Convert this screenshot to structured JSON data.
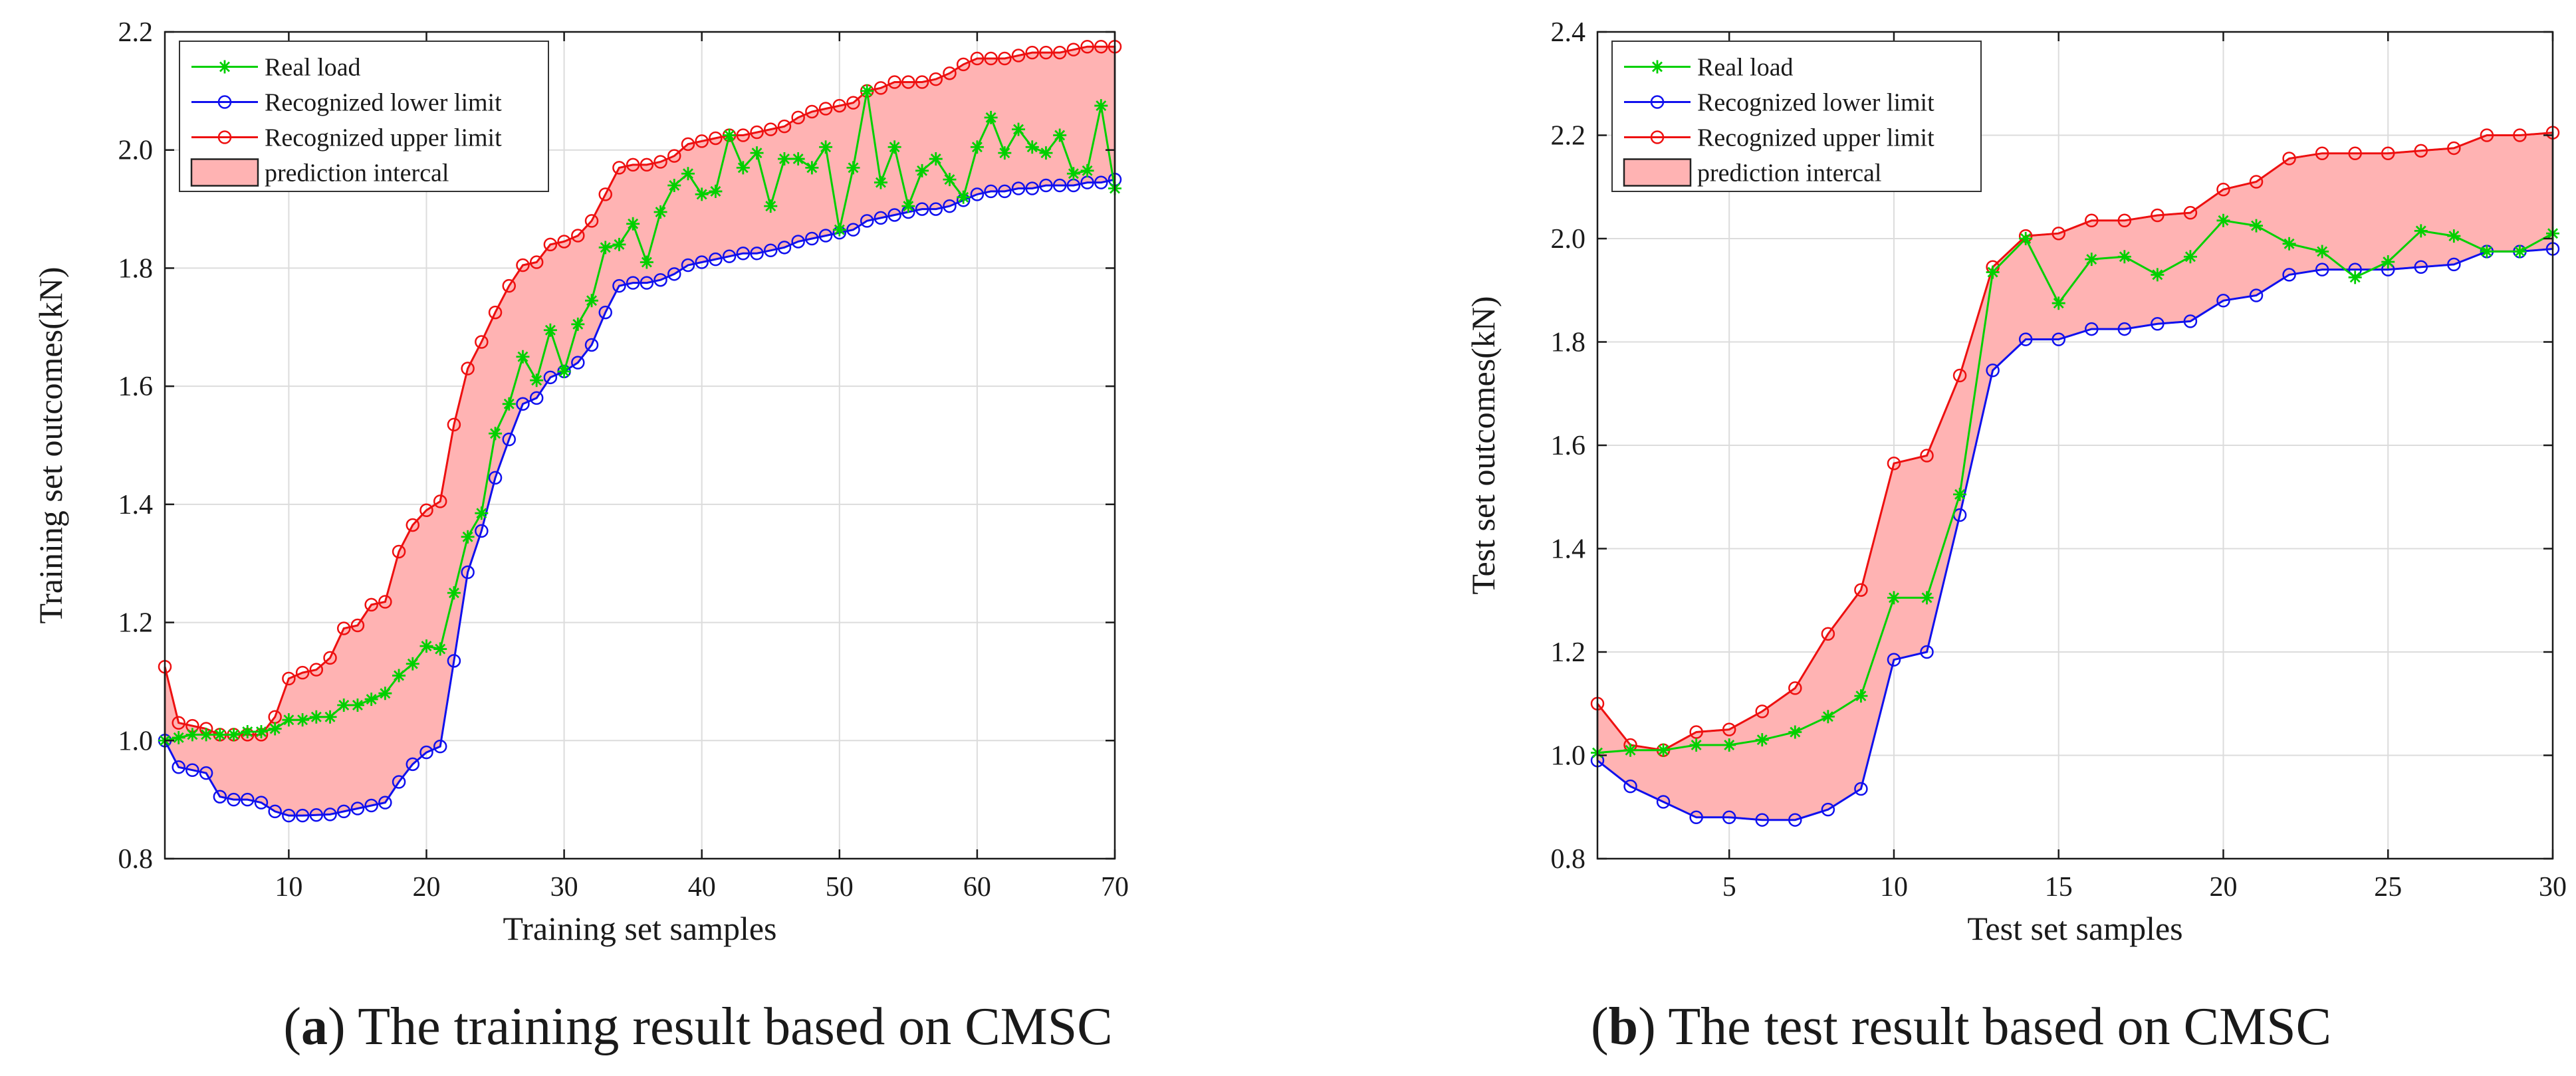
{
  "colors": {
    "real_load": "#00d000",
    "lower_limit": "#1010ee",
    "upper_limit": "#ee1010",
    "interval_fill": "#ffb3b3",
    "grid": "#dcdcdc",
    "axis": "#1a1a1a"
  },
  "captions": {
    "a": {
      "tag": "a",
      "text": "The training result based on CMSC"
    },
    "b": {
      "tag": "b",
      "text": "The test result based on CMSC"
    }
  },
  "chart_data": [
    {
      "type": "line",
      "panel": "a",
      "title": "",
      "xlabel": "Training set samples",
      "ylabel": "Training set outcomes(kN)",
      "xlim": [
        1,
        70
      ],
      "ylim": [
        0.8,
        2.2
      ],
      "xticks": [
        10,
        20,
        30,
        40,
        50,
        60,
        70
      ],
      "yticks": [
        0.8,
        1.0,
        1.2,
        1.4,
        1.6,
        1.8,
        2.0,
        2.2
      ],
      "grid": true,
      "legend_position": "top-left",
      "legend": [
        "Real load",
        "Recognized lower limit",
        "Recognized upper limit",
        "prediction intercal"
      ],
      "series": [
        {
          "name": "Real load",
          "marker": "asterisk",
          "values": [
            1.0,
            1.005,
            1.01,
            1.01,
            1.01,
            1.01,
            1.015,
            1.015,
            1.02,
            1.035,
            1.035,
            1.04,
            1.04,
            1.06,
            1.06,
            1.07,
            1.08,
            1.11,
            1.13,
            1.16,
            1.155,
            1.25,
            1.345,
            1.385,
            1.52,
            1.57,
            1.65,
            1.61,
            1.695,
            1.625,
            1.705,
            1.745,
            1.835,
            1.84,
            1.875,
            1.81,
            1.895,
            1.94,
            1.96,
            1.925,
            1.93,
            2.025,
            1.97,
            1.995,
            1.905,
            1.985,
            1.985,
            1.97,
            2.005,
            1.865,
            1.97,
            2.1,
            1.945,
            2.005,
            1.905,
            1.965,
            1.985,
            1.95,
            1.92,
            2.005,
            2.055,
            1.995,
            2.035,
            2.005,
            1.995,
            2.025,
            1.96,
            1.965,
            2.075,
            1.935
          ]
        },
        {
          "name": "Recognized lower limit",
          "marker": "circle",
          "values": [
            1.0,
            0.955,
            0.95,
            0.945,
            0.905,
            0.9,
            0.9,
            0.895,
            0.88,
            0.873,
            0.873,
            0.874,
            0.875,
            0.88,
            0.885,
            0.89,
            0.895,
            0.93,
            0.96,
            0.98,
            0.99,
            1.135,
            1.285,
            1.355,
            1.445,
            1.51,
            1.57,
            1.58,
            1.615,
            1.625,
            1.64,
            1.67,
            1.725,
            1.77,
            1.775,
            1.775,
            1.78,
            1.79,
            1.805,
            1.81,
            1.815,
            1.82,
            1.825,
            1.825,
            1.83,
            1.835,
            1.845,
            1.85,
            1.855,
            1.86,
            1.865,
            1.88,
            1.885,
            1.89,
            1.895,
            1.9,
            1.9,
            1.905,
            1.915,
            1.925,
            1.93,
            1.93,
            1.935,
            1.935,
            1.94,
            1.94,
            1.94,
            1.945,
            1.945,
            1.95
          ]
        },
        {
          "name": "Recognized upper limit",
          "marker": "circle",
          "values": [
            1.125,
            1.03,
            1.025,
            1.02,
            1.01,
            1.01,
            1.01,
            1.01,
            1.04,
            1.105,
            1.115,
            1.12,
            1.14,
            1.19,
            1.195,
            1.23,
            1.235,
            1.32,
            1.365,
            1.39,
            1.405,
            1.535,
            1.63,
            1.675,
            1.725,
            1.77,
            1.805,
            1.81,
            1.84,
            1.845,
            1.855,
            1.88,
            1.925,
            1.97,
            1.975,
            1.975,
            1.98,
            1.99,
            2.01,
            2.015,
            2.02,
            2.025,
            2.025,
            2.03,
            2.035,
            2.04,
            2.055,
            2.065,
            2.07,
            2.075,
            2.08,
            2.1,
            2.105,
            2.115,
            2.115,
            2.115,
            2.12,
            2.13,
            2.145,
            2.155,
            2.155,
            2.155,
            2.16,
            2.165,
            2.165,
            2.165,
            2.17,
            2.175,
            2.175,
            2.175
          ]
        }
      ]
    },
    {
      "type": "line",
      "panel": "b",
      "title": "",
      "xlabel": "Test set samples",
      "ylabel": "Test set outcomes(kN)",
      "xlim": [
        1,
        30
      ],
      "ylim": [
        0.8,
        2.4
      ],
      "xticks": [
        5,
        10,
        15,
        20,
        25,
        30
      ],
      "yticks": [
        0.8,
        1.0,
        1.2,
        1.4,
        1.6,
        1.8,
        2.0,
        2.2,
        2.4
      ],
      "grid": true,
      "legend_position": "top-left",
      "legend": [
        "Real load",
        "Recognized lower limit",
        "Recognized upper limit",
        "prediction intercal"
      ],
      "series": [
        {
          "name": "Real load",
          "marker": "asterisk",
          "values": [
            1.005,
            1.01,
            1.01,
            1.02,
            1.02,
            1.03,
            1.045,
            1.075,
            1.115,
            1.305,
            1.305,
            1.505,
            1.935,
            2.0,
            1.875,
            1.96,
            1.965,
            1.93,
            1.965,
            2.035,
            2.025,
            1.99,
            1.975,
            1.925,
            1.955,
            2.015,
            2.005,
            1.975,
            1.975,
            2.01
          ]
        },
        {
          "name": "Recognized lower limit",
          "marker": "circle",
          "values": [
            0.99,
            0.94,
            0.91,
            0.88,
            0.88,
            0.875,
            0.875,
            0.895,
            0.935,
            1.185,
            1.2,
            1.465,
            1.745,
            1.805,
            1.805,
            1.825,
            1.825,
            1.835,
            1.84,
            1.88,
            1.89,
            1.93,
            1.94,
            1.94,
            1.94,
            1.945,
            1.95,
            1.975,
            1.975,
            1.98
          ]
        },
        {
          "name": "Recognized upper limit",
          "marker": "circle",
          "values": [
            1.1,
            1.02,
            1.01,
            1.045,
            1.05,
            1.085,
            1.13,
            1.235,
            1.32,
            1.565,
            1.58,
            1.735,
            1.945,
            2.005,
            2.01,
            2.035,
            2.035,
            2.045,
            2.05,
            2.095,
            2.11,
            2.155,
            2.165,
            2.165,
            2.165,
            2.17,
            2.175,
            2.2,
            2.2,
            2.205
          ]
        }
      ]
    }
  ]
}
